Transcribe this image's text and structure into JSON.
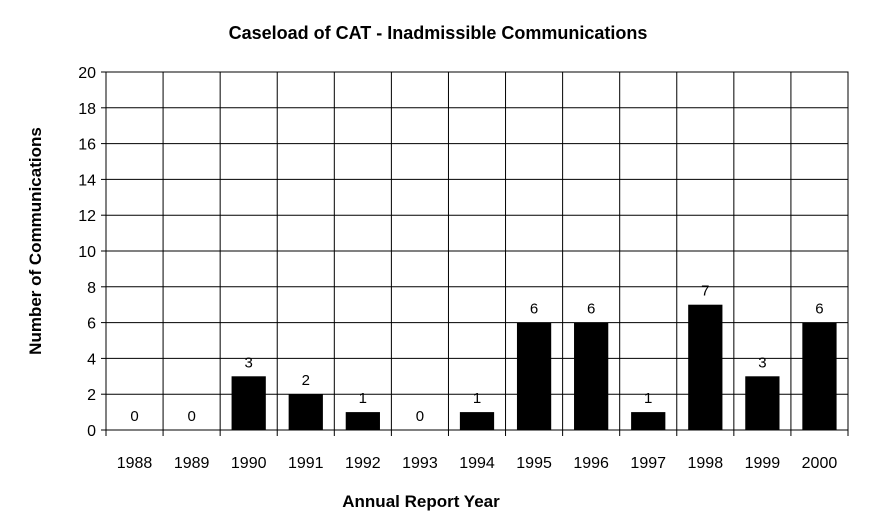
{
  "chart_data": {
    "type": "bar",
    "title": "Caseload of CAT - Inadmissible  Communications",
    "xlabel": "Annual Report Year",
    "ylabel": "Number of Communications",
    "categories": [
      "1988",
      "1989",
      "1990",
      "1991",
      "1992",
      "1993",
      "1994",
      "1995",
      "1996",
      "1997",
      "1998",
      "1999",
      "2000"
    ],
    "values": [
      0,
      0,
      3,
      2,
      1,
      0,
      1,
      6,
      6,
      1,
      7,
      3,
      6
    ],
    "ylim": [
      0,
      20
    ],
    "yticks": [
      0,
      2,
      4,
      6,
      8,
      10,
      12,
      14,
      16,
      18,
      20
    ],
    "grid": true,
    "bar_color": "#000000",
    "legend": "none"
  }
}
